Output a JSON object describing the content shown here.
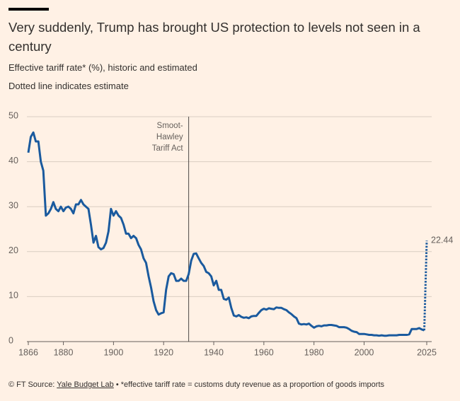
{
  "chart_data": {
    "type": "line",
    "title": "Very suddenly, Trump has brought US protection to levels not seen in a century",
    "subtitle": "Effective tariff rate* (%), historic and estimated",
    "note": "Dotted line indicates estimate",
    "xlim": [
      1866,
      2025
    ],
    "xticks": [
      1866,
      1880,
      1900,
      1920,
      1940,
      1960,
      1980,
      2000,
      2025
    ],
    "ylim": [
      0,
      50
    ],
    "yticks": [
      0,
      10,
      20,
      30,
      40,
      50
    ],
    "grid": true,
    "series": [
      {
        "color": "#1a5a9e",
        "style": "solid",
        "x": [
          1866,
          1867,
          1868,
          1869,
          1870,
          1871,
          1872,
          1873,
          1874,
          1875,
          1876,
          1877,
          1878,
          1879,
          1880,
          1881,
          1882,
          1883,
          1884,
          1885,
          1886,
          1887,
          1888,
          1889,
          1890,
          1891,
          1892,
          1893,
          1894,
          1895,
          1896,
          1897,
          1898,
          1899,
          1900,
          1901,
          1902,
          1903,
          1904,
          1905,
          1906,
          1907,
          1908,
          1909,
          1910,
          1911,
          1912,
          1913,
          1914,
          1915,
          1916,
          1917,
          1918,
          1919,
          1920,
          1921,
          1922,
          1923,
          1924,
          1925,
          1926,
          1927,
          1928,
          1929,
          1930,
          1931,
          1932,
          1933,
          1934,
          1935,
          1936,
          1937,
          1938,
          1939,
          1940,
          1941,
          1942,
          1943,
          1944,
          1945,
          1946,
          1947,
          1948,
          1949,
          1950,
          1951,
          1952,
          1953,
          1954,
          1955,
          1956,
          1957,
          1958,
          1959,
          1960,
          1961,
          1962,
          1963,
          1964,
          1965,
          1966,
          1967,
          1968,
          1969,
          1970,
          1971,
          1972,
          1973,
          1974,
          1975,
          1976,
          1977,
          1978,
          1979,
          1980,
          1981,
          1982,
          1983,
          1984,
          1985,
          1986,
          1987,
          1988,
          1989,
          1990,
          1991,
          1992,
          1993,
          1994,
          1995,
          1996,
          1997,
          1998,
          1999,
          2000,
          2001,
          2002,
          2003,
          2004,
          2005,
          2006,
          2007,
          2008,
          2009,
          2010,
          2011,
          2012,
          2013,
          2014,
          2015,
          2016,
          2017,
          2018,
          2019,
          2020,
          2021,
          2022,
          2023,
          2024
        ],
        "values": [
          42,
          45.5,
          46.5,
          44.5,
          44.5,
          40,
          38,
          28,
          28.5,
          29.5,
          31,
          29.5,
          29,
          30,
          29,
          29.8,
          30,
          29.5,
          28.5,
          30.5,
          30.5,
          31.5,
          30.5,
          30,
          29.5,
          26,
          22,
          23.5,
          21,
          20.5,
          20.8,
          22,
          24.5,
          29.5,
          28,
          29,
          28,
          27.5,
          26,
          24,
          24,
          23,
          23.5,
          23,
          21.5,
          20.5,
          18.5,
          17.5,
          14.5,
          12,
          9,
          7,
          6,
          6.3,
          6.5,
          11.5,
          14.5,
          15.2,
          15,
          13.5,
          13.5,
          14,
          13.5,
          13.5,
          15,
          18,
          19.5,
          19.6,
          18.5,
          17.5,
          16.8,
          15.5,
          15.2,
          14.5,
          12.5,
          13.5,
          11.5,
          11.5,
          9.5,
          9.3,
          9.8,
          7.5,
          5.8,
          5.6,
          5.9,
          5.5,
          5.3,
          5.4,
          5.2,
          5.6,
          5.7,
          5.7,
          6.4,
          7,
          7.3,
          7.1,
          7.4,
          7.3,
          7.2,
          7.6,
          7.5,
          7.5,
          7.2,
          7,
          6.5,
          6.1,
          5.6,
          5.2,
          4,
          3.8,
          3.9,
          3.8,
          4,
          3.5,
          3.1,
          3.4,
          3.5,
          3.4,
          3.6,
          3.6,
          3.7,
          3.7,
          3.6,
          3.5,
          3.2,
          3.2,
          3.2,
          3.1,
          2.8,
          2.4,
          2.2,
          2.1,
          1.7,
          1.7,
          1.7,
          1.6,
          1.5,
          1.5,
          1.4,
          1.4,
          1.3,
          1.4,
          1.3,
          1.3,
          1.4,
          1.4,
          1.4,
          1.4,
          1.5,
          1.5,
          1.5,
          1.5,
          1.6,
          2.8,
          2.8,
          2.8,
          3,
          2.7,
          2.5
        ]
      },
      {
        "color": "#1a5a9e",
        "style": "dotted",
        "x": [
          2024,
          2025
        ],
        "values": [
          2.5,
          22.44
        ],
        "end_label": true
      }
    ],
    "annotation": {
      "x": 1930,
      "lines": [
        "Smoot-",
        "Hawley",
        "Tariff Act"
      ]
    },
    "footer": {
      "prefix": "© FT Source:",
      "link": "Yale Budget Lab",
      "text": "• *effective tariff rate = customs duty revenue as a proportion of goods imports"
    }
  }
}
